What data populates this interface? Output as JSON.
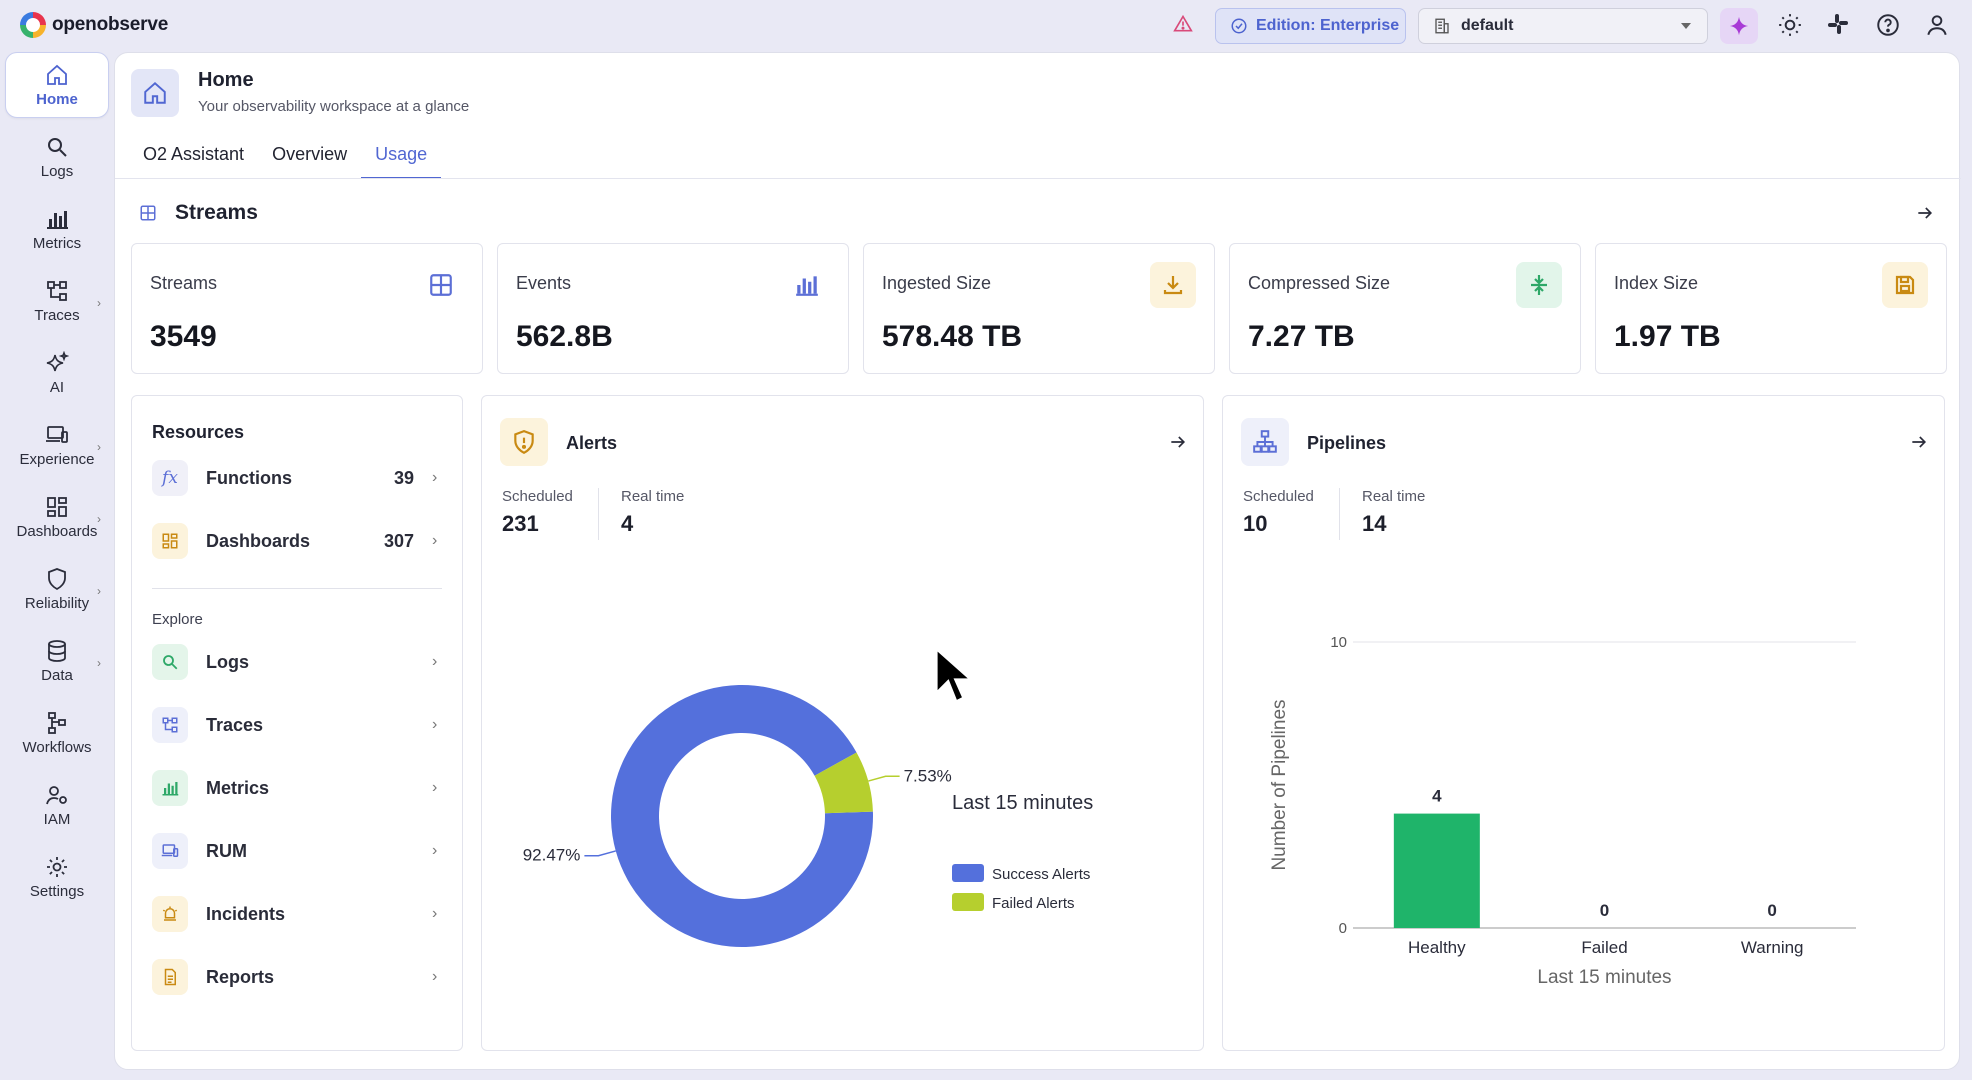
{
  "app": {
    "logo_text": "openobserve"
  },
  "topbar": {
    "edition_label": "Edition: Enterprise",
    "org_name": "default",
    "icons": [
      "warning-icon",
      "ai-assistant-icon",
      "theme-sun-icon",
      "slack-icon",
      "help-icon",
      "user-icon"
    ]
  },
  "sidebar": {
    "items": [
      {
        "label": "Home",
        "icon": "home-icon",
        "active": true
      },
      {
        "label": "Logs",
        "icon": "search-icon"
      },
      {
        "label": "Metrics",
        "icon": "bar-chart-icon"
      },
      {
        "label": "Traces",
        "icon": "traces-icon",
        "expandable": true
      },
      {
        "label": "AI",
        "icon": "sparkles-icon"
      },
      {
        "label": "Experience",
        "icon": "devices-icon",
        "expandable": true
      },
      {
        "label": "Dashboards",
        "icon": "dashboard-grid-icon",
        "expandable": true
      },
      {
        "label": "Reliability",
        "icon": "shield-icon",
        "expandable": true
      },
      {
        "label": "Data",
        "icon": "database-icon",
        "expandable": true
      },
      {
        "label": "Workflows",
        "icon": "workflow-icon"
      },
      {
        "label": "IAM",
        "icon": "user-gear-icon"
      },
      {
        "label": "Settings",
        "icon": "gear-icon"
      }
    ]
  },
  "header": {
    "title": "Home",
    "subtitle": "Your observability workspace at a glance",
    "tabs": [
      {
        "label": "O2 Assistant"
      },
      {
        "label": "Overview"
      },
      {
        "label": "Usage",
        "active": true
      }
    ]
  },
  "streams_section": {
    "title": "Streams",
    "stats": [
      {
        "label": "Streams",
        "value": "3549",
        "icon": "grid-icon",
        "color": "#5c6fd6"
      },
      {
        "label": "Events",
        "value": "562.8B",
        "icon": "bar-chart-icon",
        "color": "#5c6fd6"
      },
      {
        "label": "Ingested Size",
        "value": "578.48 TB",
        "icon": "download-icon",
        "color": "#c98a12"
      },
      {
        "label": "Compressed Size",
        "value": "7.27 TB",
        "icon": "compress-icon",
        "color": "#2ea868"
      },
      {
        "label": "Index Size",
        "value": "1.97 TB",
        "icon": "save-icon",
        "color": "#c98a12"
      }
    ]
  },
  "resources": {
    "title": "Resources",
    "items": [
      {
        "label": "Functions",
        "count": "39",
        "icon": "function-icon"
      },
      {
        "label": "Dashboards",
        "count": "307",
        "icon": "dashboard-grid-icon"
      }
    ],
    "explore_label": "Explore",
    "explore": [
      {
        "label": "Logs",
        "icon": "search-icon"
      },
      {
        "label": "Traces",
        "icon": "traces-icon"
      },
      {
        "label": "Metrics",
        "icon": "bar-chart-icon"
      },
      {
        "label": "RUM",
        "icon": "devices-icon"
      },
      {
        "label": "Incidents",
        "icon": "alarm-icon"
      },
      {
        "label": "Reports",
        "icon": "document-icon"
      }
    ]
  },
  "alerts": {
    "title": "Alerts",
    "scheduled_label": "Scheduled",
    "scheduled_value": "231",
    "realtime_label": "Real time",
    "realtime_value": "4"
  },
  "pipelines": {
    "title": "Pipelines",
    "scheduled_label": "Scheduled",
    "scheduled_value": "10",
    "realtime_label": "Real time",
    "realtime_value": "14"
  },
  "chart_data": [
    {
      "type": "pie",
      "title": "Last 15 minutes",
      "labels": [
        "Success Alerts",
        "Failed Alerts"
      ],
      "values": [
        92.47,
        7.53
      ],
      "value_labels": [
        "92.47%",
        "7.53%"
      ],
      "colors": [
        "#5470dc",
        "#b6cf2e"
      ],
      "donut": true,
      "legend": "right"
    },
    {
      "type": "bar",
      "categories": [
        "Healthy",
        "Failed",
        "Warning"
      ],
      "values": [
        4,
        0,
        0
      ],
      "xlabel": "Last 15 minutes",
      "ylabel": "Number of Pipelines",
      "ylim": [
        0,
        10
      ],
      "yticks": [
        "0",
        "10"
      ],
      "color": "#1fb46a",
      "grid": true
    }
  ]
}
